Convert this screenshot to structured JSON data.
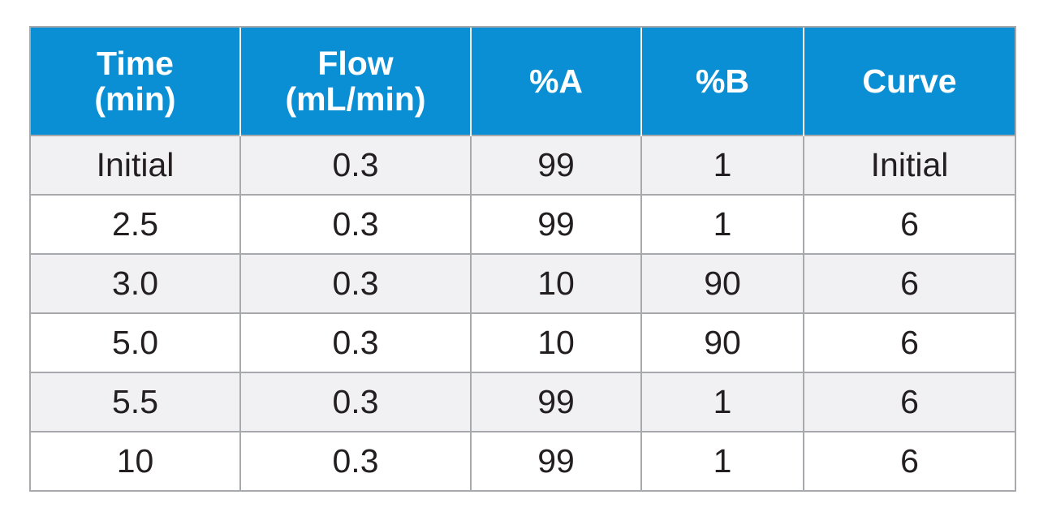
{
  "table": {
    "headers": [
      [
        "Time",
        "(min)"
      ],
      [
        "Flow",
        "(mL/min)"
      ],
      [
        "%A"
      ],
      [
        "%B"
      ],
      [
        "Curve"
      ]
    ],
    "rows": [
      [
        "Initial",
        "0.3",
        "99",
        "1",
        "Initial"
      ],
      [
        "2.5",
        "0.3",
        "99",
        "1",
        "6"
      ],
      [
        "3.0",
        "0.3",
        "10",
        "90",
        "6"
      ],
      [
        "5.0",
        "0.3",
        "10",
        "90",
        "6"
      ],
      [
        "5.5",
        "0.3",
        "99",
        "1",
        "6"
      ],
      [
        "10",
        "0.3",
        "99",
        "1",
        "6"
      ]
    ]
  },
  "colors": {
    "header_background": "#0a8fd4",
    "header_text": "#ffffff",
    "shaded_row": "#f1f1f3",
    "border": "#a7a9ac",
    "body_text": "#231f20"
  }
}
